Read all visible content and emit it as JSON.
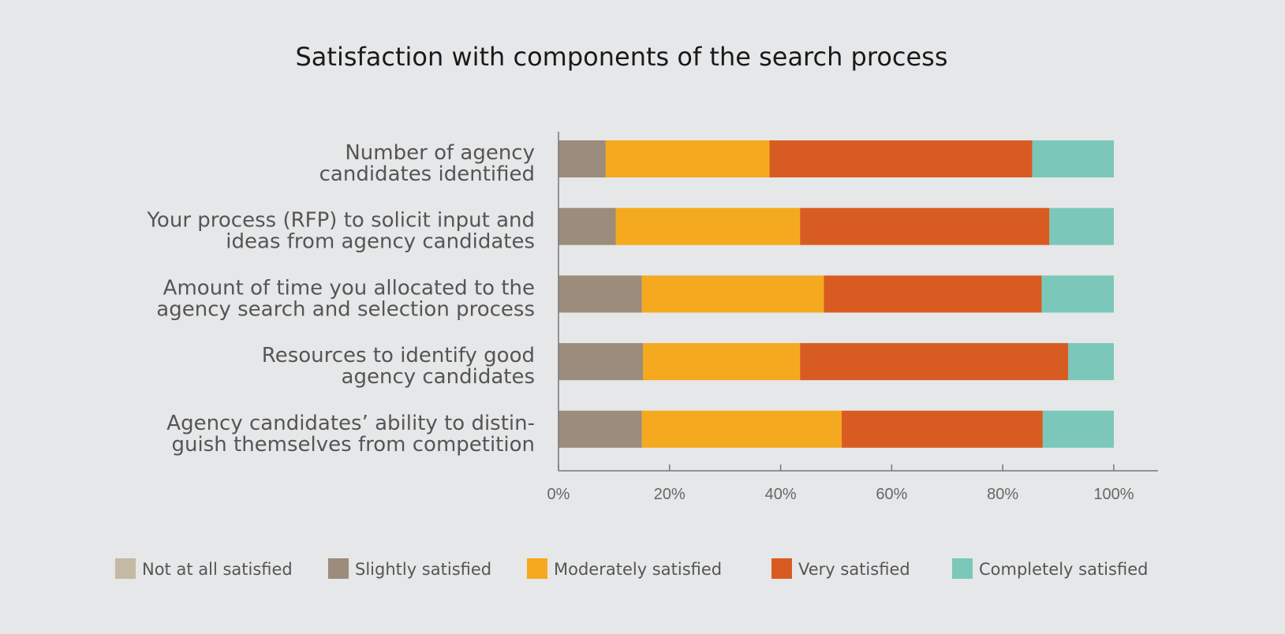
{
  "chart_data": {
    "type": "bar",
    "orientation": "horizontal",
    "stacked": true,
    "title": "Satisfaction with components of the search process",
    "xlabel": "",
    "ylabel": "",
    "xlim": [
      0,
      100
    ],
    "x_ticks": [
      "0%",
      "20%",
      "40%",
      "60%",
      "80%",
      "100%"
    ],
    "grid": false,
    "legend_position": "bottom",
    "categories": [
      [
        "Number of agency",
        "candidates identified"
      ],
      [
        "Your process (RFP) to solicit input and",
        "ideas from agency candidates"
      ],
      [
        "Amount of time you allocated to the",
        "agency search and selection process"
      ],
      [
        "Resources to identify good",
        "agency candidates"
      ],
      [
        "Agency candidates’ ability to distin-",
        "guish themselves from competition"
      ]
    ],
    "series": [
      {
        "name": "Not at all satisfied",
        "color": "#c5b9a5",
        "values": [
          0,
          0,
          0,
          0,
          0
        ]
      },
      {
        "name": "Slightly satisfied",
        "color": "#9b8c7c",
        "values": [
          8.5,
          10.3,
          15,
          15.2,
          15
        ]
      },
      {
        "name": "Moderately satisfied",
        "color": "#f5a91f",
        "values": [
          29.5,
          33.2,
          32.8,
          28.3,
          36
        ]
      },
      {
        "name": "Very satisfied",
        "color": "#d85c22",
        "values": [
          47.3,
          44.9,
          39.2,
          48.3,
          36.2
        ]
      },
      {
        "name": "Completely satisfied",
        "color": "#7bc8bb",
        "values": [
          14.7,
          11.6,
          13,
          8.2,
          12.8
        ]
      }
    ]
  }
}
